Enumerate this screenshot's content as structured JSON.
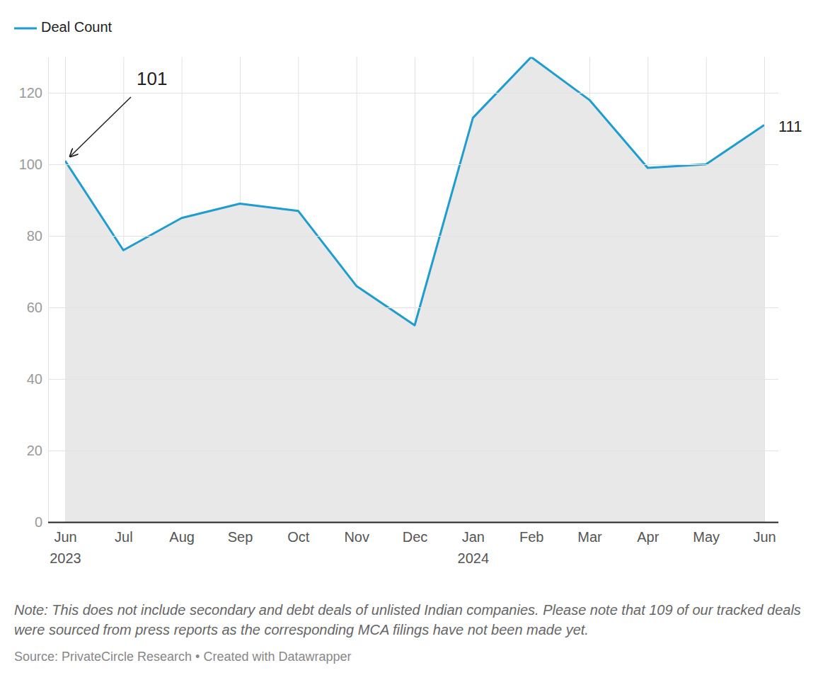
{
  "chart_data": {
    "type": "line",
    "categories": [
      "Jun 2023",
      "Jul",
      "Aug",
      "Sep",
      "Oct",
      "Nov",
      "Dec",
      "Jan 2024",
      "Feb",
      "Mar",
      "Apr",
      "May",
      "Jun"
    ],
    "series": [
      {
        "name": "Deal Count",
        "color": "#1f9dce",
        "values": [
          101,
          76,
          85,
          89,
          87,
          66,
          55,
          113,
          130,
          118,
          99,
          100,
          111
        ]
      }
    ],
    "ylim": [
      0,
      130
    ],
    "yticks": [
      0,
      20,
      40,
      60,
      80,
      100,
      120
    ],
    "grid": true,
    "legend": "top-left",
    "annotations": [
      "101",
      "111"
    ],
    "note": "Note: This does not include secondary and debt deals of unlisted Indian companies. Please note that 109 of our tracked deals were sourced from press reports as the corresponding MCA filings have not been made yet.",
    "source": "Source: PrivateCircle Research • Created with Datawrapper"
  }
}
